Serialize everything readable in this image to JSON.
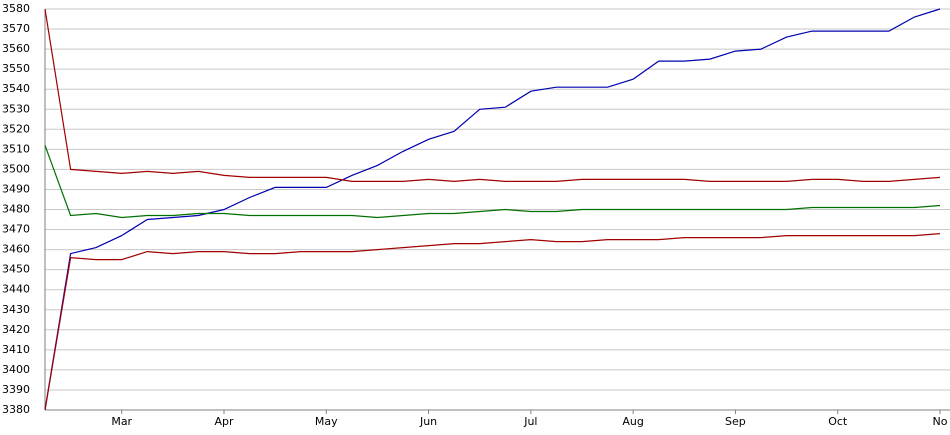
{
  "chart_data": {
    "type": "line",
    "categories": [
      null,
      null,
      null,
      "Mar",
      null,
      null,
      null,
      "Apr",
      null,
      null,
      null,
      "May",
      null,
      null,
      null,
      "Jun",
      null,
      null,
      null,
      "Jul",
      null,
      null,
      null,
      "Aug",
      null,
      null,
      null,
      "Sep",
      null,
      null,
      null,
      "Oct",
      null,
      null,
      null,
      "No"
    ],
    "series": [
      {
        "color": "#0000b0",
        "values": [
          3380,
          3458,
          3461,
          3467,
          3475,
          3476,
          3477,
          3480,
          3486,
          3491,
          3491,
          3491,
          3497,
          3502,
          3509,
          3515,
          3519,
          3530,
          3531,
          3539,
          3541,
          3541,
          3541,
          3545,
          3554,
          3554,
          3555,
          3559,
          3560,
          3566,
          3569,
          3569,
          3569,
          3569,
          3576,
          3580
        ]
      },
      {
        "color": "#a00000",
        "values": [
          3580,
          3500,
          3499,
          3498,
          3499,
          3498,
          3499,
          3497,
          3496,
          3496,
          3496,
          3496,
          3494,
          3494,
          3494,
          3495,
          3494,
          3495,
          3494,
          3494,
          3494,
          3495,
          3495,
          3495,
          3495,
          3495,
          3494,
          3494,
          3494,
          3494,
          3495,
          3495,
          3494,
          3494,
          3495,
          3496
        ]
      },
      {
        "color": "#007000",
        "values": [
          3512,
          3477,
          3478,
          3476,
          3477,
          3477,
          3478,
          3478,
          3477,
          3477,
          3477,
          3477,
          3477,
          3476,
          3477,
          3478,
          3478,
          3479,
          3480,
          3479,
          3479,
          3480,
          3480,
          3480,
          3480,
          3480,
          3480,
          3480,
          3480,
          3480,
          3481,
          3481,
          3481,
          3481,
          3481,
          3482
        ]
      },
      {
        "color": "#a00000",
        "values": [
          3380,
          3456,
          3455,
          3455,
          3459,
          3458,
          3459,
          3459,
          3458,
          3458,
          3459,
          3459,
          3459,
          3460,
          3461,
          3462,
          3463,
          3463,
          3464,
          3465,
          3464,
          3464,
          3465,
          3465,
          3465,
          3466,
          3466,
          3466,
          3466,
          3467,
          3467,
          3467,
          3467,
          3467,
          3467,
          3468
        ]
      }
    ],
    "ylim": [
      3380,
      3580
    ],
    "yticks": [
      3380,
      3390,
      3400,
      3410,
      3420,
      3430,
      3440,
      3450,
      3460,
      3470,
      3480,
      3490,
      3500,
      3510,
      3520,
      3530,
      3540,
      3550,
      3560,
      3570,
      3580
    ],
    "grid": true
  }
}
